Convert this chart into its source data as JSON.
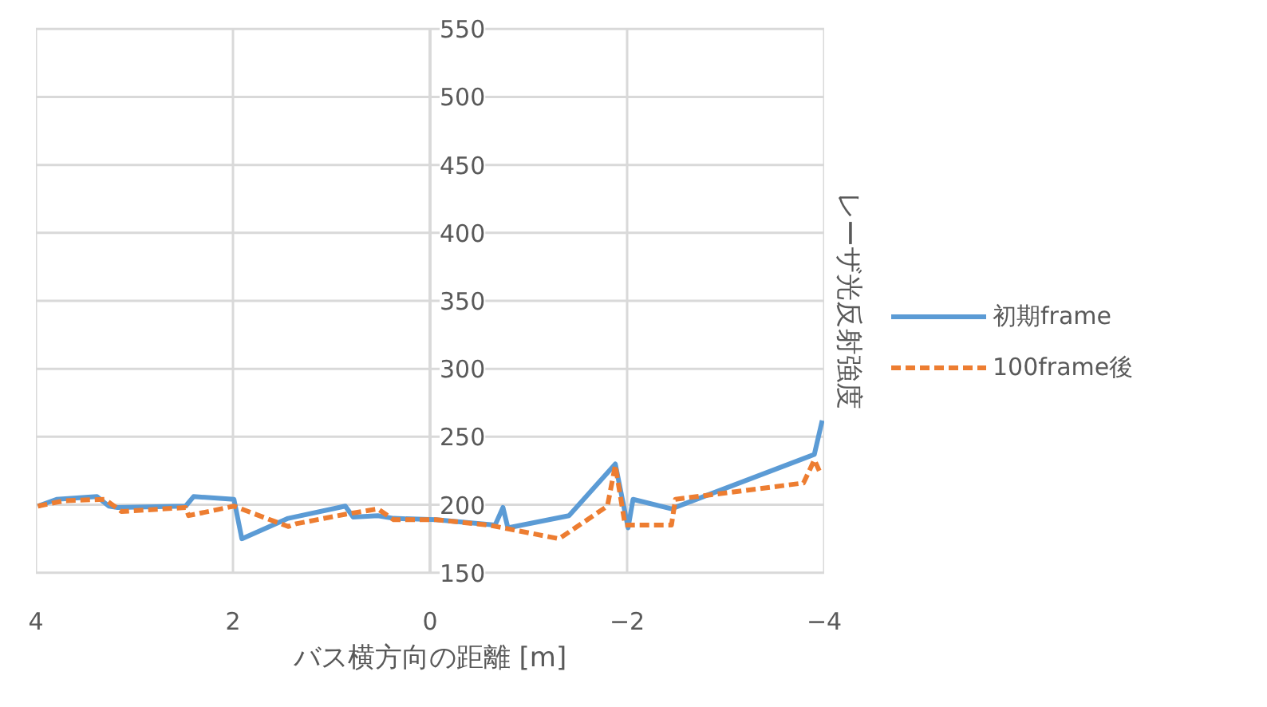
{
  "chart_data": {
    "type": "line",
    "xlabel": "バス横方向の距離 [m]",
    "ylabel": "レーザ光反射強度",
    "xlim": [
      4,
      -4
    ],
    "xticks": [
      4,
      2,
      0,
      -2,
      -4
    ],
    "ylim": [
      150,
      550
    ],
    "yticks": [
      150,
      200,
      250,
      300,
      350,
      400,
      450,
      500,
      550
    ],
    "grid": true,
    "legend": "right",
    "marker": "none",
    "series": [
      {
        "name": "初期frame",
        "color": "#5b9bd5",
        "line_style": "solid",
        "x": [
          3.98,
          3.79,
          3.38,
          3.26,
          3.17,
          2.48,
          2.4,
          1.99,
          1.91,
          1.44,
          0.86,
          0.78,
          0.53,
          0.37,
          -0.06,
          -0.66,
          -0.74,
          -0.79,
          -1.41,
          -1.88,
          -2.01,
          -2.06,
          -2.45,
          -3.9,
          -3.98
        ],
        "values": [
          199,
          204,
          206,
          199,
          198,
          199,
          206,
          204,
          175,
          190,
          199,
          191,
          192,
          190,
          189,
          185,
          198,
          183,
          192,
          230,
          183,
          204,
          197,
          237,
          262
        ]
      },
      {
        "name": "100frame後",
        "color": "#ed7d31",
        "line_style": "dashed",
        "x": [
          3.98,
          3.71,
          3.3,
          3.13,
          2.48,
          2.45,
          1.99,
          1.44,
          1.36,
          0.86,
          0.53,
          0.37,
          -0.06,
          -0.6,
          -1.31,
          -1.8,
          -1.88,
          -1.98,
          -2.45,
          -2.49,
          -3.79,
          -3.9,
          -3.95
        ],
        "values": [
          199,
          203,
          204,
          195,
          198,
          192,
          199,
          184,
          186,
          193,
          197,
          189,
          189,
          185,
          175,
          199,
          229,
          185,
          185,
          204,
          216,
          233,
          225
        ]
      }
    ]
  }
}
